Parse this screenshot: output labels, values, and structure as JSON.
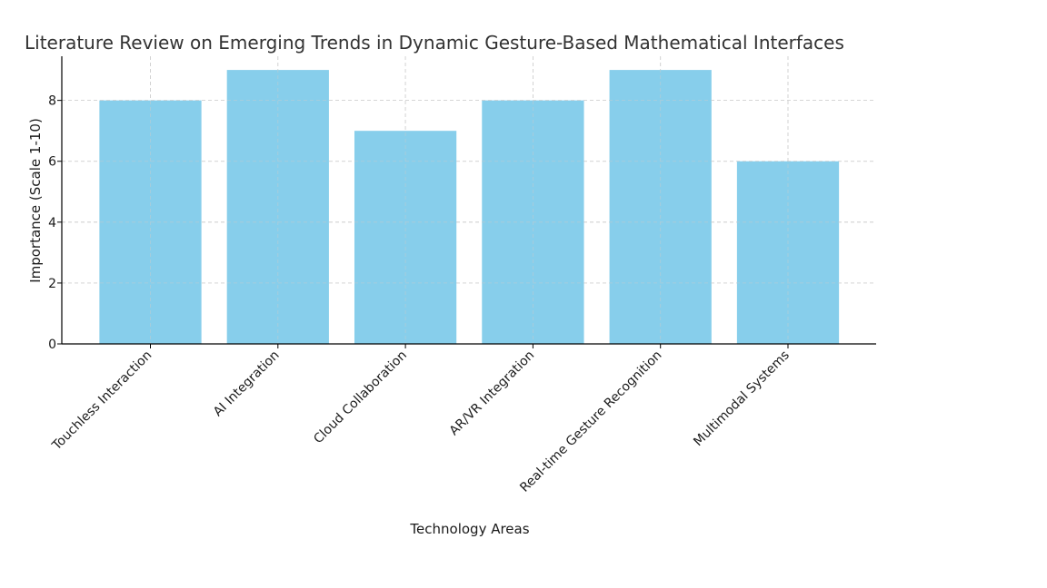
{
  "chart_data": {
    "type": "bar",
    "title": "Literature Review on Emerging Trends in Dynamic Gesture-Based Mathematical Interfaces",
    "xlabel": "Technology Areas",
    "ylabel": "Importance (Scale 1-10)",
    "categories": [
      "Touchless Interaction",
      "AI Integration",
      "Cloud Collaboration",
      "AR/VR Integration",
      "Real-time Gesture Recognition",
      "Multimodal Systems"
    ],
    "values": [
      8,
      9,
      7,
      8,
      9,
      6
    ],
    "ylim": [
      0,
      9.45
    ],
    "yticks": [
      0,
      2,
      4,
      6,
      8
    ],
    "grid": true,
    "bar_color": "#87CEEB"
  }
}
